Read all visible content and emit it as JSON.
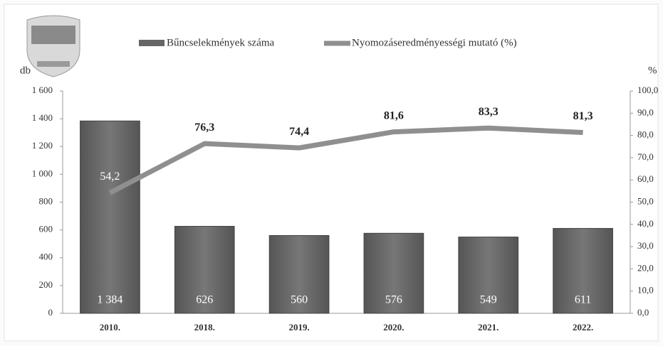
{
  "chart_data": {
    "type": "combo",
    "categories": [
      "2010.",
      "2018.",
      "2019.",
      "2020.",
      "2021.",
      "2022."
    ],
    "ylabel": "db",
    "y2label": "%",
    "ylim": [
      0,
      1600
    ],
    "yticks": [
      0,
      200,
      400,
      600,
      800,
      {
        "value": 1000,
        "label": "1 000"
      },
      {
        "value": 1200,
        "label": "1 200"
      },
      {
        "value": 1400,
        "label": "1 400"
      },
      {
        "value": 1600,
        "label": "1 600"
      }
    ],
    "y2lim": [
      0,
      100
    ],
    "y2ticks": [
      {
        "value": 0,
        "label": "0,0"
      },
      {
        "value": 10,
        "label": "10,0"
      },
      {
        "value": 20,
        "label": "20,0"
      },
      {
        "value": 30,
        "label": "30,0"
      },
      {
        "value": 40,
        "label": "40,0"
      },
      {
        "value": 50,
        "label": "50,0"
      },
      {
        "value": 60,
        "label": "60,0"
      },
      {
        "value": 70,
        "label": "70,0"
      },
      {
        "value": 80,
        "label": "80,0"
      },
      {
        "value": 90,
        "label": "90,0"
      },
      {
        "value": 100,
        "label": "100,0"
      }
    ],
    "grid": false,
    "series": [
      {
        "name": "Bűncselekmények száma",
        "type": "bar",
        "color": "#666666",
        "values": [
          1384,
          626,
          560,
          576,
          549,
          611
        ],
        "value_labels": [
          "1 384",
          "626",
          "560",
          "576",
          "549",
          "611"
        ]
      },
      {
        "name": "Nyomozáseredményességi mutató (%)",
        "type": "line",
        "axis": "y2",
        "color": "#8f8f8f",
        "values": [
          54.2,
          76.3,
          74.4,
          81.6,
          83.3,
          81.3
        ],
        "value_labels": [
          "54,2",
          "76,3",
          "74,4",
          "81,6",
          "83,3",
          "81,3"
        ]
      }
    ]
  }
}
